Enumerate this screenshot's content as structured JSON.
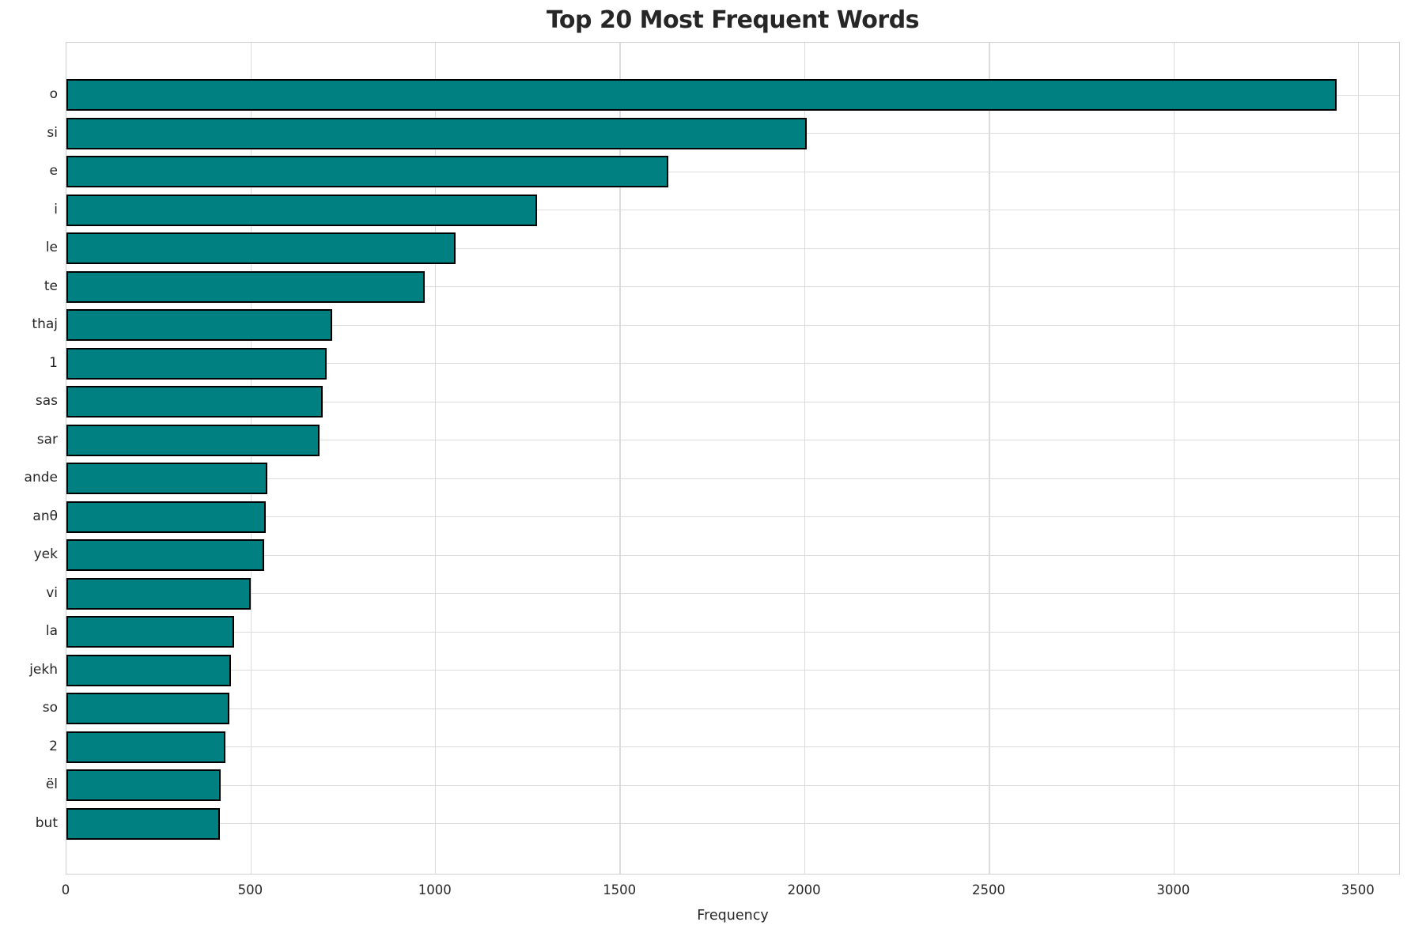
{
  "chart_data": {
    "type": "bar",
    "orientation": "horizontal",
    "title": "Top 20 Most Frequent Words",
    "xlabel": "Frequency",
    "ylabel": "",
    "categories": [
      "o",
      "si",
      "e",
      "i",
      "le",
      "te",
      "thaj",
      "1",
      "sas",
      "sar",
      "ande",
      "anθ",
      "yek",
      "vi",
      "la",
      "jekh",
      "so",
      "2",
      "ël",
      "but"
    ],
    "values": [
      3440,
      2005,
      1630,
      1275,
      1055,
      970,
      720,
      705,
      695,
      685,
      545,
      540,
      535,
      500,
      455,
      445,
      442,
      430,
      418,
      415
    ],
    "xticks": [
      0,
      500,
      1000,
      1500,
      2000,
      2500,
      3000,
      3500
    ],
    "xlim": [
      0,
      3614
    ],
    "grid": true,
    "legend": "none",
    "bar_color": "#008080",
    "bar_edge_color": "#000000",
    "grid_color": "#dcdcdc",
    "text_color": "#262626"
  }
}
